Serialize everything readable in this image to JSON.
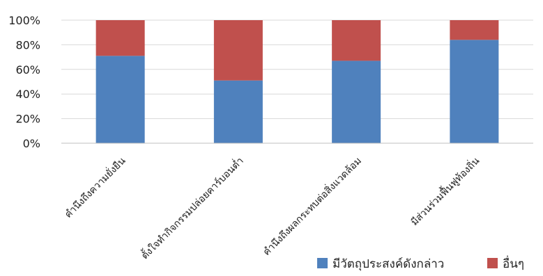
{
  "chart_data": {
    "type": "bar",
    "stacked": true,
    "percent": true,
    "categories": [
      "คำนึงถึงความยั่งยืน",
      "ตั้งใจทำกิจกรรมปล่อยคาร์บอนต่ำ",
      "คำนึงถึงผลกระทบต่อสิ่งแวดล้อม",
      "มีส่วนร่วมฟื้นฟูท้องถิ่น"
    ],
    "series": [
      {
        "name": "มีวัตถุประสงค์ดังกล่าว",
        "color": "#4F81BD",
        "values": [
          71,
          51,
          67,
          84
        ]
      },
      {
        "name": "อื่นๆ",
        "color": "#C0504D",
        "values": [
          29,
          49,
          33,
          16
        ]
      }
    ],
    "ylim": [
      0,
      100
    ],
    "yticks": [
      "0%",
      "20%",
      "40%",
      "60%",
      "80%",
      "100%"
    ],
    "grid": true,
    "legend": "bottom-right",
    "gridColor": "#D9D9D9",
    "axisColor": "#BFBFBF"
  }
}
